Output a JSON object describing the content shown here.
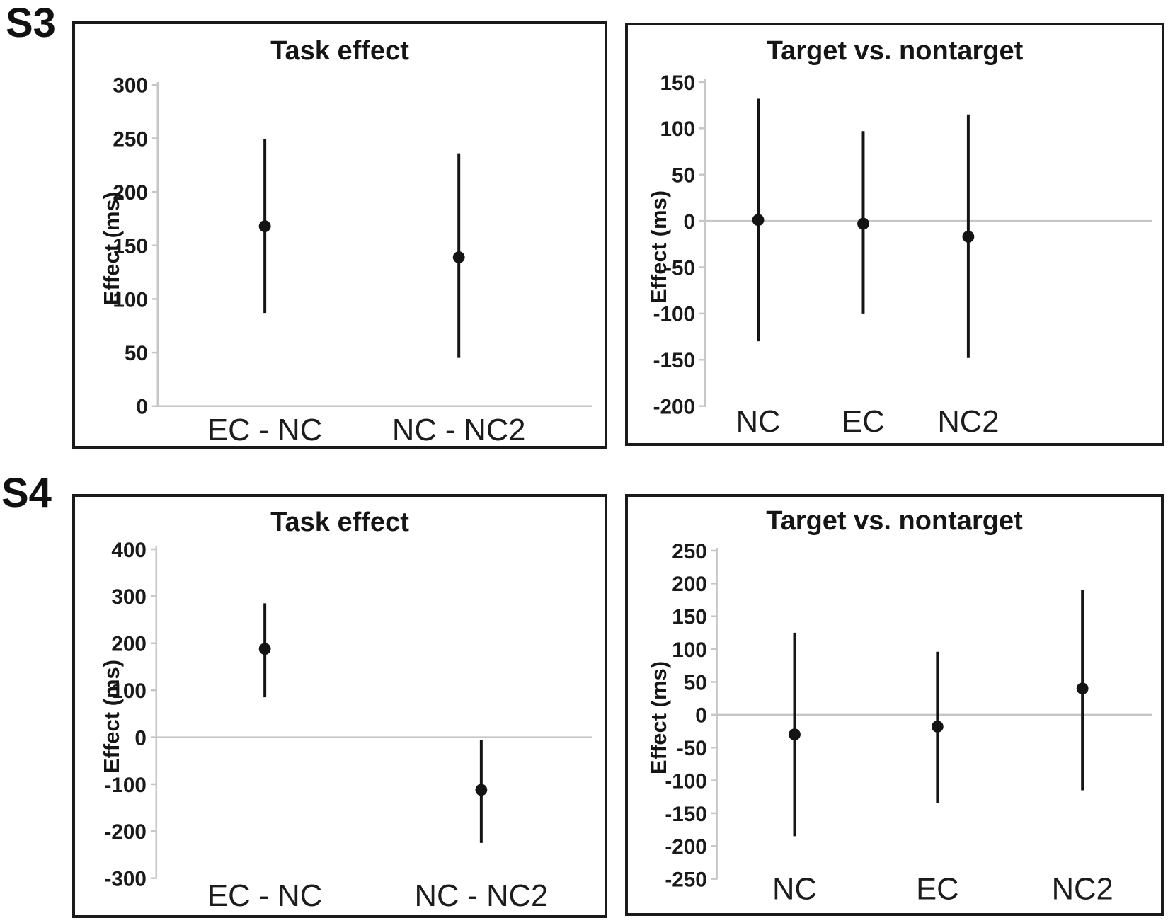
{
  "figure": {
    "row_labels": {
      "row1": "S3",
      "row2": "S4"
    },
    "background": "#ffffff"
  },
  "colors": {
    "text": "#1a1a1a",
    "marker": "#141414",
    "error_bar": "#141414",
    "axis_line": "#c6c6c6",
    "zero_line": "#c6c6c6",
    "panel_border": "#1a1a1a"
  },
  "chart_data": [
    {
      "type": "scatter",
      "subtype": "mean-with-error-bars",
      "row": "S3",
      "title": "Task effect",
      "ylabel": "Effect (ms)",
      "categories": [
        "EC - NC",
        "NC - NC2"
      ],
      "series": [
        {
          "name": "Effect",
          "points": [
            {
              "category": "EC - NC",
              "mean": 168,
              "ci_low": 87,
              "ci_high": 249
            },
            {
              "category": "NC - NC2",
              "mean": 139,
              "ci_low": 45,
              "ci_high": 236
            }
          ]
        }
      ],
      "ylim": [
        0,
        300
      ],
      "ytick_step": 50,
      "yticks": [
        300,
        250,
        200,
        150,
        100,
        50,
        0
      ],
      "grid": false,
      "legend": false,
      "zero_line": true
    },
    {
      "type": "scatter",
      "subtype": "mean-with-error-bars",
      "row": "S3",
      "title": "Target vs. nontarget",
      "ylabel": "Effect (ms)",
      "categories": [
        "NC",
        "EC",
        "NC2"
      ],
      "series": [
        {
          "name": "Effect",
          "points": [
            {
              "category": "NC",
              "mean": 1,
              "ci_low": -130,
              "ci_high": 132
            },
            {
              "category": "EC",
              "mean": -3,
              "ci_low": -100,
              "ci_high": 97
            },
            {
              "category": "NC2",
              "mean": -17,
              "ci_low": -148,
              "ci_high": 115
            }
          ]
        }
      ],
      "ylim": [
        -200,
        150
      ],
      "ytick_step": 50,
      "yticks": [
        150,
        100,
        50,
        0,
        -50,
        -100,
        -150,
        -200
      ],
      "grid": false,
      "legend": false,
      "zero_line": true
    },
    {
      "type": "scatter",
      "subtype": "mean-with-error-bars",
      "row": "S4",
      "title": "Task effect",
      "ylabel": "Effect (ms)",
      "categories": [
        "EC - NC",
        "NC - NC2"
      ],
      "series": [
        {
          "name": "Effect",
          "points": [
            {
              "category": "EC - NC",
              "mean": 188,
              "ci_low": 85,
              "ci_high": 285
            },
            {
              "category": "NC - NC2",
              "mean": -112,
              "ci_low": -225,
              "ci_high": -6
            }
          ]
        }
      ],
      "ylim": [
        -300,
        400
      ],
      "ytick_step": 100,
      "yticks": [
        400,
        300,
        200,
        100,
        0,
        -100,
        -200,
        -300
      ],
      "grid": false,
      "legend": false,
      "zero_line": true
    },
    {
      "type": "scatter",
      "subtype": "mean-with-error-bars",
      "row": "S4",
      "title": "Target vs. nontarget",
      "ylabel": "Effect (ms)",
      "categories": [
        "NC",
        "EC",
        "NC2"
      ],
      "series": [
        {
          "name": "Effect",
          "points": [
            {
              "category": "NC",
              "mean": -30,
              "ci_low": -185,
              "ci_high": 125
            },
            {
              "category": "EC",
              "mean": -18,
              "ci_low": -135,
              "ci_high": 96
            },
            {
              "category": "NC2",
              "mean": 40,
              "ci_low": -115,
              "ci_high": 190
            }
          ]
        }
      ],
      "ylim": [
        -250,
        250
      ],
      "ytick_step": 50,
      "yticks": [
        250,
        200,
        150,
        100,
        50,
        0,
        -50,
        -100,
        -150,
        -200,
        -250
      ],
      "grid": false,
      "legend": false,
      "zero_line": true
    }
  ]
}
